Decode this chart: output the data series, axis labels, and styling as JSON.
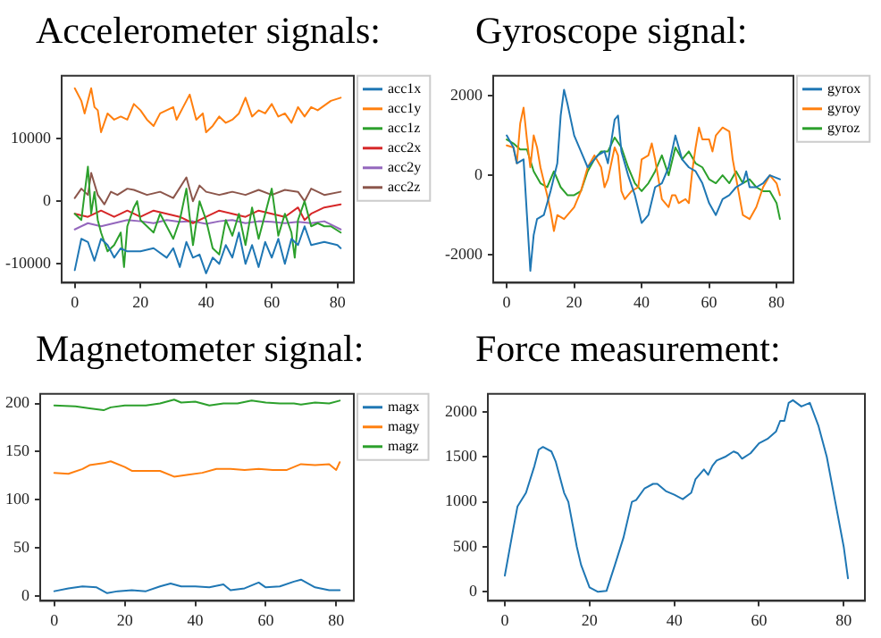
{
  "chart_data": [
    {
      "type": "line",
      "title": "Accelerometer signals:",
      "xlim": [
        -4,
        85
      ],
      "xticks": [
        0,
        20,
        40,
        60,
        80
      ],
      "ylim": [
        -13000,
        20000
      ],
      "yticks": [
        -10000,
        0,
        10000
      ],
      "grid": false,
      "legend": "top right",
      "series": [
        {
          "name": "acc1x",
          "color": "#1f77b4",
          "x": [
            0,
            2,
            4,
            6,
            8,
            10,
            12,
            14,
            16,
            20,
            24,
            28,
            30,
            32,
            34,
            36,
            38,
            40,
            42,
            44,
            46,
            48,
            50,
            52,
            54,
            56,
            58,
            60,
            62,
            64,
            66,
            68,
            70,
            72,
            76,
            80,
            81
          ],
          "values": [
            -11000,
            -6000,
            -6500,
            -9500,
            -6000,
            -7000,
            -9000,
            -7500,
            -8000,
            -8000,
            -7500,
            -9000,
            -7500,
            -10500,
            -6500,
            -9000,
            -8500,
            -11500,
            -9000,
            -10000,
            -7000,
            -9000,
            -5000,
            -10000,
            -7000,
            -10500,
            -6500,
            -9000,
            -6000,
            -10000,
            -6000,
            -7000,
            -4000,
            -7000,
            -6500,
            -7000,
            -7500
          ]
        },
        {
          "name": "acc1y",
          "color": "#ff7f0e",
          "x": [
            0,
            2,
            3,
            5,
            6,
            7,
            8,
            10,
            12,
            14,
            16,
            18,
            20,
            22,
            24,
            26,
            28,
            30,
            31,
            33,
            35,
            37,
            39,
            40,
            42,
            44,
            46,
            48,
            50,
            52,
            54,
            56,
            58,
            60,
            62,
            64,
            66,
            68,
            70,
            72,
            74,
            78,
            81
          ],
          "values": [
            18000,
            16000,
            14000,
            18000,
            15000,
            14500,
            11000,
            14000,
            13000,
            13500,
            13000,
            15500,
            14500,
            13000,
            12000,
            14000,
            14500,
            15000,
            13000,
            15000,
            17000,
            13000,
            14000,
            11000,
            12000,
            13500,
            12500,
            13000,
            14000,
            16500,
            13500,
            14500,
            14000,
            15500,
            13500,
            14000,
            12500,
            15000,
            13500,
            15000,
            14500,
            16000,
            16500
          ]
        },
        {
          "name": "acc1z",
          "color": "#2ca02c",
          "x": [
            0,
            2,
            4,
            5,
            6,
            7,
            8,
            10,
            12,
            14,
            15,
            16,
            18,
            19,
            20,
            22,
            24,
            26,
            28,
            30,
            32,
            34,
            36,
            38,
            40,
            42,
            44,
            46,
            48,
            50,
            52,
            54,
            56,
            58,
            60,
            62,
            64,
            66,
            67,
            68,
            70,
            72,
            74,
            76,
            78,
            81
          ],
          "values": [
            -2000,
            -3000,
            5500,
            -2000,
            1500,
            -3000,
            -5000,
            -8000,
            -7000,
            -5000,
            -10500,
            -4000,
            -1000,
            0,
            -3000,
            -4000,
            -5000,
            -2000,
            -4000,
            -6000,
            -3000,
            2000,
            -7000,
            0,
            -3000,
            -7500,
            -8500,
            -3000,
            -5500,
            -2000,
            -7000,
            -1000,
            -6000,
            -2000,
            2000,
            -5500,
            -2000,
            -5000,
            -9000,
            -3000,
            0,
            -4000,
            -3500,
            -4000,
            -4000,
            -5000
          ]
        },
        {
          "name": "acc2x",
          "color": "#d62728",
          "x": [
            0,
            4,
            8,
            12,
            16,
            20,
            24,
            28,
            32,
            36,
            40,
            44,
            48,
            52,
            56,
            60,
            64,
            68,
            70,
            72,
            76,
            81
          ],
          "values": [
            -2000,
            -2500,
            -1500,
            -2500,
            -1500,
            -2500,
            -1500,
            -2000,
            -2500,
            -3500,
            -2500,
            -1500,
            -2000,
            -2500,
            -1500,
            -2000,
            -2500,
            -1000,
            -3000,
            -2000,
            -1000,
            -500
          ]
        },
        {
          "name": "acc2y",
          "color": "#9467bd",
          "x": [
            0,
            4,
            8,
            12,
            16,
            20,
            24,
            28,
            32,
            36,
            40,
            44,
            48,
            52,
            56,
            60,
            64,
            68,
            72,
            76,
            81
          ],
          "values": [
            -4500,
            -3500,
            -4000,
            -3500,
            -3000,
            -3200,
            -3500,
            -3000,
            -3300,
            -3200,
            -3600,
            -3200,
            -3000,
            -3500,
            -3200,
            -3300,
            -3500,
            -3300,
            -3500,
            -3200,
            -4500
          ]
        },
        {
          "name": "acc2z",
          "color": "#8c564b",
          "x": [
            0,
            2,
            4,
            5,
            7,
            9,
            11,
            13,
            16,
            18,
            22,
            26,
            30,
            34,
            36,
            38,
            40,
            44,
            48,
            52,
            56,
            60,
            64,
            68,
            70,
            72,
            76,
            81
          ],
          "values": [
            500,
            2000,
            1000,
            4500,
            1000,
            -500,
            1500,
            1000,
            2000,
            1800,
            1000,
            1500,
            500,
            3800,
            0,
            2500,
            1500,
            1000,
            1500,
            1000,
            1800,
            1000,
            1800,
            1500,
            0,
            2000,
            1000,
            1500
          ]
        }
      ]
    },
    {
      "type": "line",
      "title": "Gyroscope signal:",
      "xlim": [
        -4,
        85
      ],
      "xticks": [
        0,
        20,
        40,
        60,
        80
      ],
      "ylim": [
        -2700,
        2500
      ],
      "yticks": [
        -2000,
        0,
        2000
      ],
      "grid": false,
      "legend": "top right",
      "series": [
        {
          "name": "gyrox",
          "color": "#1f77b4",
          "x": [
            0,
            2,
            3,
            5,
            6,
            7,
            8,
            9,
            11,
            13,
            15,
            16,
            17,
            18,
            20,
            22,
            24,
            27,
            29,
            30,
            32,
            33,
            34,
            36,
            38,
            40,
            42,
            44,
            46,
            48,
            50,
            52,
            54,
            56,
            58,
            60,
            62,
            64,
            66,
            68,
            70,
            71,
            72,
            74,
            76,
            78,
            81
          ],
          "values": [
            1000,
            700,
            300,
            400,
            -1000,
            -2400,
            -1500,
            -1100,
            -1000,
            -400,
            300,
            1500,
            2150,
            1800,
            1000,
            600,
            200,
            500,
            600,
            300,
            1400,
            1500,
            600,
            0,
            -500,
            -1200,
            -1000,
            -300,
            -200,
            200,
            1000,
            400,
            200,
            100,
            -200,
            -700,
            -1000,
            -600,
            -500,
            -300,
            -200,
            100,
            -300,
            -300,
            -200,
            0,
            -100
          ]
        },
        {
          "name": "gyroy",
          "color": "#ff7f0e",
          "x": [
            0,
            2,
            3,
            4,
            5,
            6,
            7,
            8,
            9,
            10,
            12,
            13,
            14,
            15,
            17,
            20,
            22,
            24,
            26,
            28,
            29,
            30,
            32,
            33,
            34,
            35,
            37,
            39,
            40,
            42,
            43,
            44,
            46,
            48,
            49,
            50,
            51,
            53,
            54,
            55,
            56,
            57,
            58,
            60,
            61,
            62,
            64,
            66,
            67,
            70,
            72,
            74,
            76,
            78,
            80,
            81
          ],
          "values": [
            750,
            700,
            300,
            1300,
            1700,
            900,
            200,
            1000,
            700,
            200,
            -500,
            -900,
            -1400,
            -1000,
            -1100,
            -800,
            -400,
            200,
            500,
            200,
            -300,
            -100,
            700,
            500,
            -400,
            -600,
            -400,
            -300,
            400,
            500,
            800,
            400,
            -600,
            -800,
            -500,
            -500,
            -700,
            -600,
            -700,
            100,
            700,
            1200,
            900,
            900,
            600,
            1000,
            1200,
            1100,
            400,
            -1000,
            -1100,
            -800,
            -300,
            0,
            -200,
            -500
          ]
        },
        {
          "name": "gyroz",
          "color": "#2ca02c",
          "x": [
            0,
            2,
            4,
            6,
            8,
            10,
            12,
            14,
            16,
            18,
            20,
            22,
            24,
            26,
            28,
            30,
            32,
            34,
            36,
            38,
            40,
            42,
            44,
            46,
            48,
            50,
            52,
            54,
            56,
            58,
            60,
            62,
            64,
            66,
            68,
            70,
            72,
            74,
            76,
            78,
            80,
            81
          ],
          "values": [
            900,
            800,
            650,
            650,
            100,
            -200,
            -300,
            100,
            -300,
            -500,
            -500,
            -400,
            100,
            400,
            600,
            600,
            950,
            700,
            200,
            -200,
            -400,
            -200,
            100,
            500,
            0,
            700,
            400,
            600,
            300,
            200,
            -100,
            -200,
            0,
            -200,
            100,
            -200,
            -100,
            -300,
            -400,
            -400,
            -700,
            -1100
          ]
        }
      ]
    },
    {
      "type": "line",
      "title": "Magnetometer signal:",
      "xlim": [
        -4,
        85
      ],
      "xticks": [
        0,
        20,
        40,
        60,
        80
      ],
      "ylim": [
        -5,
        210
      ],
      "yticks": [
        0,
        50,
        100,
        150,
        200
      ],
      "grid": false,
      "legend": "top right",
      "series": [
        {
          "name": "magx",
          "color": "#1f77b4",
          "x": [
            0,
            4,
            8,
            12,
            15,
            18,
            22,
            26,
            30,
            33,
            36,
            40,
            44,
            48,
            50,
            54,
            58,
            60,
            64,
            68,
            70,
            74,
            78,
            81
          ],
          "values": [
            5,
            8,
            10,
            9,
            3,
            5,
            6,
            5,
            10,
            13,
            10,
            10,
            9,
            12,
            6,
            8,
            14,
            9,
            10,
            15,
            17,
            9,
            6,
            6
          ]
        },
        {
          "name": "magy",
          "color": "#ff7f0e",
          "x": [
            0,
            4,
            8,
            10,
            14,
            16,
            20,
            22,
            26,
            30,
            34,
            38,
            42,
            46,
            50,
            54,
            58,
            62,
            66,
            70,
            74,
            78,
            80,
            81
          ],
          "values": [
            128,
            127,
            132,
            136,
            138,
            140,
            134,
            130,
            130,
            130,
            124,
            126,
            128,
            132,
            132,
            131,
            132,
            131,
            131,
            137,
            136,
            137,
            131,
            139
          ]
        },
        {
          "name": "magz",
          "color": "#2ca02c",
          "x": [
            0,
            6,
            10,
            14,
            16,
            20,
            26,
            30,
            34,
            36,
            40,
            44,
            48,
            52,
            56,
            60,
            64,
            68,
            70,
            74,
            78,
            81
          ],
          "values": [
            198,
            197,
            195,
            193,
            196,
            198,
            198,
            200,
            204,
            201,
            202,
            198,
            200,
            200,
            203,
            201,
            200,
            200,
            199,
            201,
            200,
            203
          ]
        }
      ]
    },
    {
      "type": "line",
      "title": "Force measurement:",
      "xlim": [
        -4,
        85
      ],
      "xticks": [
        0,
        20,
        40,
        60,
        80
      ],
      "ylim": [
        -100,
        2200
      ],
      "yticks": [
        0,
        500,
        1000,
        1500,
        2000
      ],
      "grid": false,
      "legend": false,
      "series": [
        {
          "color": "#1f77b4",
          "x": [
            0,
            2,
            3,
            5,
            7,
            8,
            9,
            11,
            12,
            14,
            15,
            17,
            18,
            20,
            22,
            24,
            26,
            28,
            30,
            31,
            33,
            35,
            36,
            38,
            40,
            42,
            44,
            45,
            47,
            48,
            49,
            50,
            52,
            54,
            55,
            56,
            58,
            60,
            62,
            64,
            65,
            66,
            67,
            68,
            70,
            72,
            74,
            76,
            78,
            80,
            81
          ],
          "values": [
            180,
            700,
            950,
            1100,
            1400,
            1580,
            1610,
            1560,
            1450,
            1100,
            1000,
            500,
            300,
            50,
            0,
            10,
            300,
            600,
            1000,
            1020,
            1150,
            1200,
            1200,
            1120,
            1080,
            1030,
            1100,
            1250,
            1360,
            1300,
            1400,
            1460,
            1500,
            1560,
            1540,
            1480,
            1540,
            1650,
            1700,
            1780,
            1900,
            1900,
            2100,
            2130,
            2060,
            2100,
            1850,
            1500,
            1000,
            500,
            150
          ]
        }
      ]
    }
  ]
}
